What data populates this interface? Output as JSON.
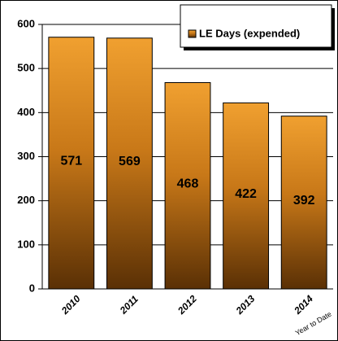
{
  "chart_data": {
    "type": "bar",
    "categories": [
      "2010",
      "2011",
      "2012",
      "2013",
      "2014"
    ],
    "series": [
      {
        "name": "LE Days (expended)",
        "color": "#f0a030",
        "values": [
          571,
          569,
          468,
          422,
          392
        ]
      }
    ],
    "annotation": "Year to Date",
    "ylim": [
      0,
      600
    ],
    "yticks": [
      0,
      100,
      200,
      300,
      400,
      500,
      600
    ],
    "grid": true,
    "legend": "top-right"
  }
}
